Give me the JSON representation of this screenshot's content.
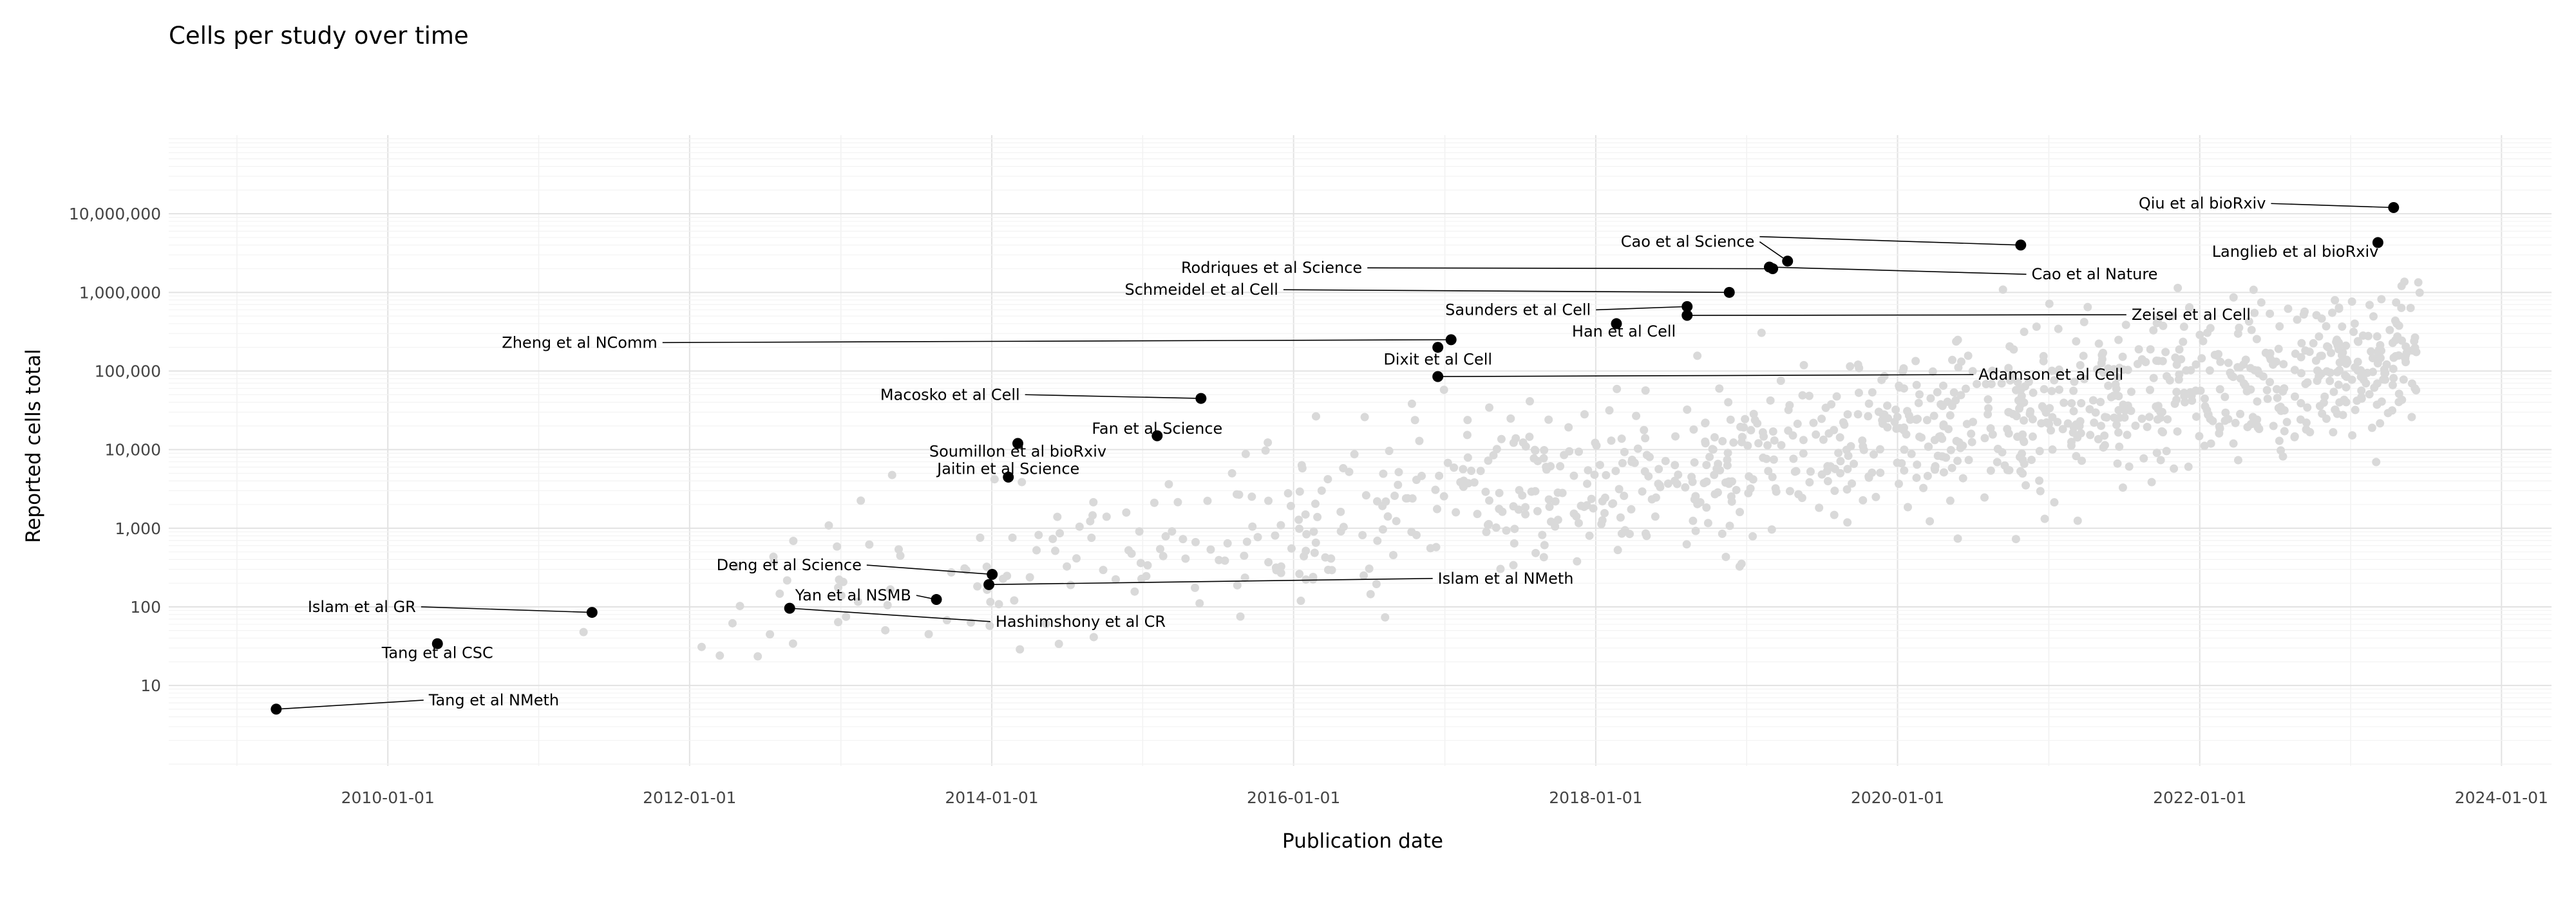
{
  "chart_data": {
    "type": "scatter",
    "title": "Cells per study over time",
    "xlabel": "Publication date",
    "ylabel": "Reported cells total",
    "x_scale": "date",
    "y_scale": "log",
    "x_ticks": [
      "2010-01-01",
      "2012-01-01",
      "2014-01-01",
      "2016-01-01",
      "2018-01-01",
      "2020-01-01",
      "2022-01-01",
      "2024-01-01"
    ],
    "y_ticks": [
      10,
      100,
      1000,
      10000,
      100000,
      1000000,
      10000000
    ],
    "y_tick_labels": [
      "10",
      "100",
      "1,000",
      "10,000",
      "100,000",
      "1,000,000",
      "10,000,000"
    ],
    "xlim": [
      "2008-07-20",
      "2024-05-01"
    ],
    "ylim": [
      0.95,
      100000000
    ],
    "grid": true,
    "background_color": "#d9d9d9",
    "highlight_color": "#000000",
    "highlighted": [
      {
        "label": "Tang et al NMeth",
        "date": "2009-04-06",
        "cells": 5,
        "label_date": "2010-04-10",
        "label_cells": 6.5,
        "anchor": "start"
      },
      {
        "label": "Islam et al GR",
        "date": "2011-05-10",
        "cells": 85,
        "label_date": "2010-03-10",
        "label_cells": 100,
        "anchor": "end"
      },
      {
        "label": "Tang et al CSC",
        "date": "2010-05-01",
        "cells": 34,
        "label_date": "2010-05-01",
        "label_cells": 26,
        "anchor": "middle"
      },
      {
        "label": "Yan et al NSMB",
        "date": "2013-08-20",
        "cells": 124,
        "label_date": "2013-06-20",
        "label_cells": 140,
        "anchor": "end"
      },
      {
        "label": "Hashimshony et al CR",
        "date": "2012-08-30",
        "cells": 96,
        "label_date": "2014-01-10",
        "label_cells": 65,
        "anchor": "start"
      },
      {
        "label": "Deng et al Science",
        "date": "2014-01-02",
        "cells": 259,
        "label_date": "2013-02-20",
        "label_cells": 340,
        "anchor": "end"
      },
      {
        "label": "Islam et al NMeth",
        "date": "2013-12-25",
        "cells": 192,
        "label_date": "2016-12-15",
        "label_cells": 230,
        "anchor": "start"
      },
      {
        "label": "Jaitin et al Science",
        "date": "2014-02-10",
        "cells": 4468,
        "label_date": "2014-02-10",
        "label_cells": 5700,
        "anchor": "middle"
      },
      {
        "label": "Soumillon et al bioRxiv",
        "date": "2014-03-05",
        "cells": 12000,
        "label_date": "2014-03-05",
        "label_cells": 9500,
        "anchor": "middle"
      },
      {
        "label": "Fan et al Science",
        "date": "2015-02-05",
        "cells": 15000,
        "label_date": "2015-02-05",
        "label_cells": 18500,
        "anchor": "middle"
      },
      {
        "label": "Macosko et al Cell",
        "date": "2015-05-22",
        "cells": 44808,
        "label_date": "2014-03-10",
        "label_cells": 50000,
        "anchor": "end"
      },
      {
        "label": "Zheng et al NComm",
        "date": "2017-01-16",
        "cells": 250000,
        "label_date": "2011-10-15",
        "label_cells": 230000,
        "anchor": "end"
      },
      {
        "label": "Dixit et al Cell",
        "date": "2016-12-15",
        "cells": 200000,
        "label_date": "2016-12-15",
        "label_cells": 140000,
        "anchor": "middle"
      },
      {
        "label": "Adamson et al Cell",
        "date": "2016-12-15",
        "cells": 85000,
        "label_date": "2020-07-15",
        "label_cells": 90000,
        "anchor": "start"
      },
      {
        "label": "Schmeidel et al Cell",
        "date": "2018-11-20",
        "cells": 1000000,
        "label_date": "2015-11-25",
        "label_cells": 1080000,
        "anchor": "end"
      },
      {
        "label": "Rodriques et al Science",
        "date": "2019-03-05",
        "cells": 2000000,
        "label_date": "2016-06-15",
        "label_cells": 2050000,
        "anchor": "end"
      },
      {
        "label": "Cao et al Science",
        "date": "2019-04-10",
        "cells": 2500000,
        "label_date": "2019-01-20",
        "label_cells": 4400000,
        "anchor": "end"
      },
      {
        "label": "Cao et al Nature",
        "date": "2019-02-25",
        "cells": 2100000,
        "label_date": "2020-11-20",
        "label_cells": 1700000,
        "anchor": "start"
      },
      {
        "label": "Cao et al Science",
        "date": "2020-10-25",
        "cells": 4000000,
        "label_date": "2019-01-20",
        "label_cells": 4400000,
        "anchor": "none"
      },
      {
        "label": "Saunders et al Cell",
        "date": "2018-08-10",
        "cells": 660000,
        "label_date": "2017-12-20",
        "label_cells": 600000,
        "anchor": "end"
      },
      {
        "label": "Han et al Cell",
        "date": "2018-02-20",
        "cells": 400000,
        "label_date": "2018-03-10",
        "label_cells": 320000,
        "anchor": "middle"
      },
      {
        "label": "Zeisel et al Cell",
        "date": "2018-08-10",
        "cells": 510000,
        "label_date": "2021-07-20",
        "label_cells": 520000,
        "anchor": "start"
      },
      {
        "label": "Qiu et al bioRxiv",
        "date": "2023-04-15",
        "cells": 12000000,
        "label_date": "2022-06-10",
        "label_cells": 13500000,
        "anchor": "end"
      },
      {
        "label": "Langlieb et al bioRxiv",
        "date": "2023-03-08",
        "cells": 4300000,
        "label_date": "2022-08-20",
        "label_cells": 3300000,
        "anchor": "middle"
      }
    ]
  }
}
